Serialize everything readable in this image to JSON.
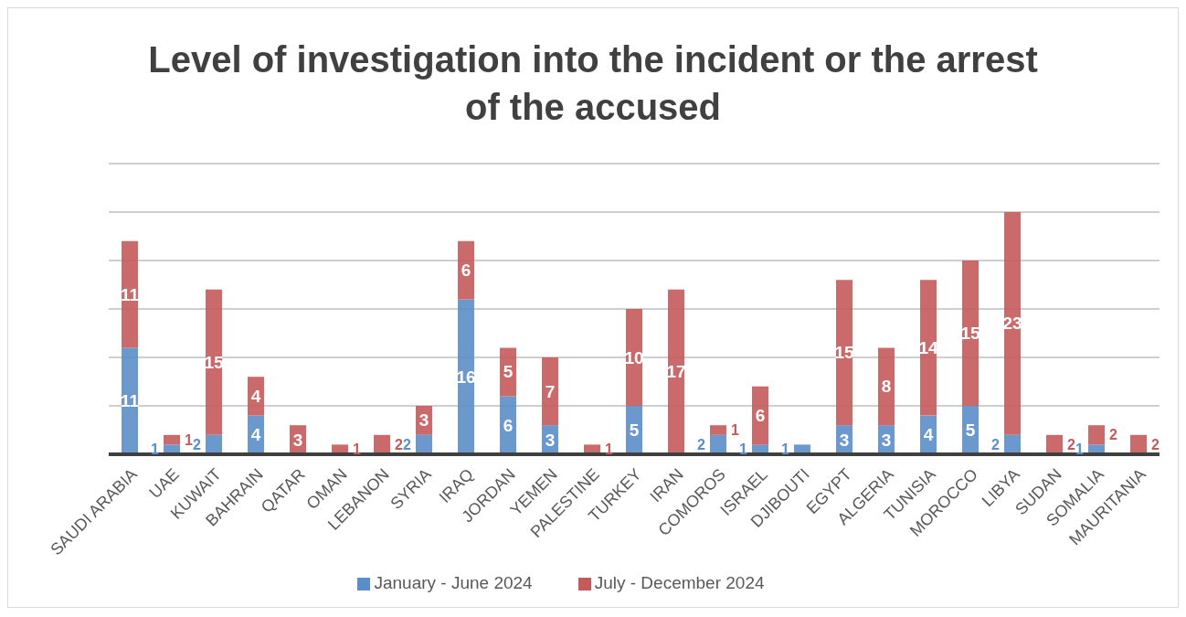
{
  "chart_data": {
    "type": "bar",
    "title": "Level of investigation into the incident or the arrest of the accused",
    "categories": [
      "SAUDI ARABIA",
      "UAE",
      "KUWAIT",
      "BAHRAIN",
      "QATAR",
      "OMAN",
      "LEBANON",
      "SYRIA",
      "IRAQ",
      "JORDAN",
      "YEMEN",
      "PALESTINE",
      "TURKEY",
      "IRAN",
      "COMOROS",
      "ISRAEL",
      "DJIBOUTI",
      "EGYPT",
      "ALGERIA",
      "TUNISIA",
      "MOROCCO",
      "LIBYA",
      "SUDAN",
      "SOMALIA",
      "MAURITANIA"
    ],
    "series": [
      {
        "name": "January - June 2024",
        "color": "#5b8ec9",
        "values": [
          11,
          1,
          2,
          4,
          null,
          null,
          null,
          2,
          16,
          6,
          3,
          null,
          5,
          null,
          2,
          1,
          1,
          3,
          3,
          4,
          5,
          2,
          null,
          1,
          null
        ]
      },
      {
        "name": "July - December 2024",
        "color": "#c55a5a",
        "values": [
          11,
          1,
          15,
          4,
          3,
          1,
          2,
          3,
          6,
          5,
          7,
          1,
          10,
          17,
          1,
          6,
          null,
          15,
          8,
          14,
          15,
          23,
          2,
          2,
          2
        ]
      }
    ],
    "stacked": true,
    "ylim": [
      0,
      30
    ],
    "yticks": [
      {
        "value": 0,
        "label": null
      },
      {
        "value": 5,
        "label": null
      },
      {
        "value": 10,
        "label": null
      },
      {
        "value": 15,
        "label": null
      },
      {
        "value": 20,
        "label": null
      },
      {
        "value": 25,
        "label": null
      },
      {
        "value": 30,
        "label": null
      }
    ],
    "tick_labels": "x",
    "grid": "y",
    "legend": "bottom",
    "data_labels": true
  }
}
